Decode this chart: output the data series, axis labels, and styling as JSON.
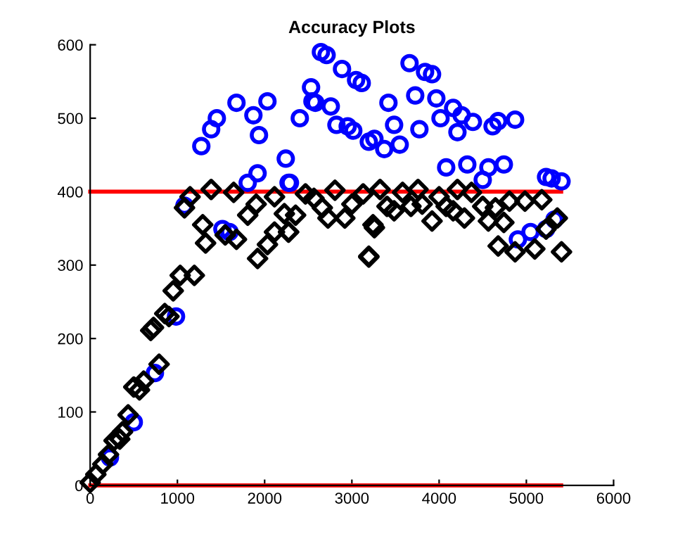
{
  "chart_data": {
    "type": "scatter",
    "title": "Accuracy Plots",
    "series": [
      {
        "marker": "circle",
        "color": "#0000ff",
        "x": [
          226,
          500,
          742,
          984,
          1081,
          1274,
          1387,
          1452,
          1516,
          1597,
          1677,
          1806,
          1871,
          1919,
          1935,
          2032,
          2242,
          2274,
          2290,
          2403,
          2532,
          2548,
          2581,
          2645,
          2710,
          2758,
          2823,
          2887,
          2952,
          3016,
          3048,
          3113,
          3194,
          3258,
          3371,
          3419,
          3484,
          3548,
          3661,
          3726,
          3774,
          3839,
          3919,
          3968,
          4016,
          4081,
          4161,
          4210,
          4258,
          4323,
          4387,
          4500,
          4565,
          4613,
          4677,
          4742,
          4871,
          4903,
          5048,
          5226,
          5226,
          5290,
          5323,
          5403
        ],
        "values": [
          38,
          86,
          153,
          230,
          381,
          462,
          485,
          500,
          349,
          345,
          521,
          412,
          504,
          425,
          477,
          523,
          445,
          412,
          412,
          500,
          542,
          523,
          521,
          590,
          586,
          516,
          491,
          567,
          489,
          483,
          552,
          548,
          468,
          472,
          458,
          521,
          491,
          464,
          575,
          531,
          485,
          563,
          560,
          527,
          500,
          433,
          514,
          481,
          504,
          437,
          495,
          416,
          433,
          489,
          496,
          437,
          498,
          335,
          345,
          349,
          420,
          418,
          362,
          414
        ]
      },
      {
        "marker": "diamond",
        "color": "#000000",
        "x": [
          0,
          65,
          145,
          210,
          274,
          339,
          371,
          435,
          500,
          565,
          613,
          694,
          726,
          790,
          855,
          903,
          952,
          1032,
          1081,
          1145,
          1194,
          1290,
          1323,
          1387,
          1548,
          1645,
          1677,
          1806,
          1903,
          1919,
          2032,
          2113,
          2113,
          2226,
          2274,
          2274,
          2355,
          2468,
          2565,
          2661,
          2726,
          2806,
          2919,
          3000,
          3129,
          3194,
          3194,
          3242,
          3258,
          3323,
          3403,
          3484,
          3581,
          3677,
          3758,
          3806,
          3919,
          4000,
          4081,
          4161,
          4210,
          4290,
          4371,
          4500,
          4565,
          4645,
          4677,
          4742,
          4806,
          4871,
          4984,
          5097,
          5177,
          5226,
          5355,
          5403
        ],
        "values": [
          4,
          15,
          29,
          42,
          61,
          63,
          73,
          96,
          134,
          130,
          142,
          211,
          215,
          165,
          234,
          230,
          265,
          286,
          378,
          393,
          286,
          355,
          330,
          403,
          341,
          399,
          335,
          368,
          383,
          309,
          328,
          345,
          393,
          370,
          345,
          345,
          368,
          397,
          391,
          378,
          364,
          402,
          364,
          383,
          397,
          311,
          312,
          355,
          351,
          403,
          380,
          374,
          399,
          380,
          403,
          383,
          360,
          393,
          380,
          374,
          403,
          364,
          399,
          380,
          360,
          378,
          326,
          358,
          387,
          318,
          387,
          322,
          389,
          349,
          364,
          318
        ]
      },
      {
        "type": "line",
        "marker": "none",
        "color": "#ff0000",
        "x": [
          0,
          5400
        ],
        "values": [
          400,
          400
        ]
      },
      {
        "type": "line",
        "marker": "none",
        "color": "#ff0000",
        "x": [
          0,
          5400
        ],
        "values": [
          0,
          0
        ]
      }
    ],
    "xlim": [
      0,
      6000
    ],
    "xticks": [
      0,
      1000,
      2000,
      3000,
      4000,
      5000,
      6000
    ],
    "ylim": [
      0,
      600
    ],
    "yticks": [
      0,
      100,
      200,
      300,
      400,
      500,
      600
    ],
    "grid": false,
    "legend": false
  }
}
